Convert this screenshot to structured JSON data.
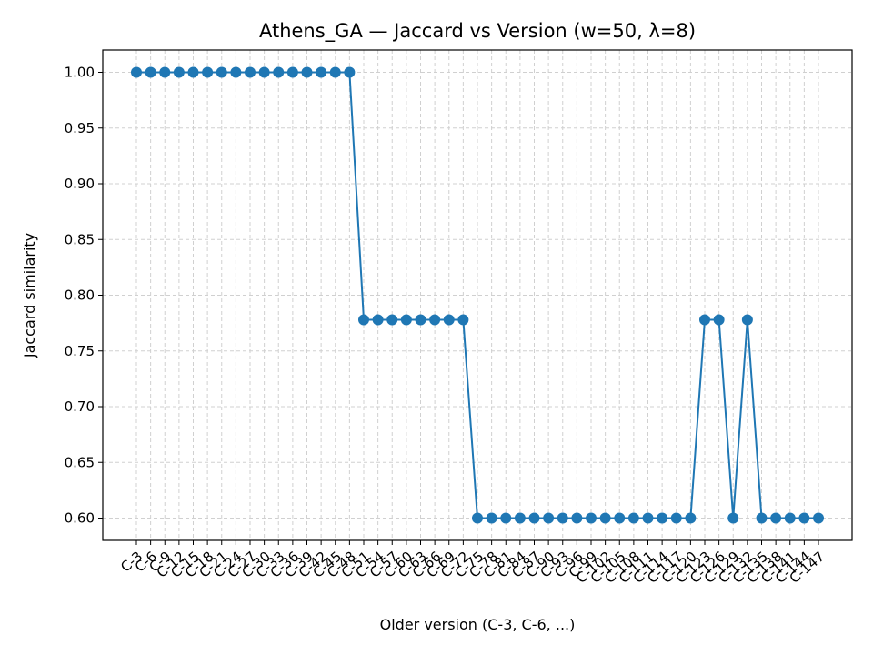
{
  "chart_data": {
    "type": "line",
    "title": "Athens_GA — Jaccard vs Version (w=50, λ=8)",
    "xlabel": "Older version (C-3, C-6, ...)",
    "ylabel": "Jaccard similarity",
    "ylim": [
      0.58,
      1.02
    ],
    "yticks": [
      "0.60",
      "0.65",
      "0.70",
      "0.75",
      "0.80",
      "0.85",
      "0.90",
      "0.95",
      "1.00"
    ],
    "grid": true,
    "categories": [
      "C-3",
      "C-6",
      "C-9",
      "C-12",
      "C-15",
      "C-18",
      "C-21",
      "C-24",
      "C-27",
      "C-30",
      "C-33",
      "C-36",
      "C-39",
      "C-42",
      "C-45",
      "C-48",
      "C-51",
      "C-54",
      "C-57",
      "C-60",
      "C-63",
      "C-66",
      "C-69",
      "C-72",
      "C-75",
      "C-78",
      "C-81",
      "C-84",
      "C-87",
      "C-90",
      "C-93",
      "C-96",
      "C-99",
      "C-102",
      "C-105",
      "C-108",
      "C-111",
      "C-114",
      "C-117",
      "C-120",
      "C-123",
      "C-126",
      "C-129",
      "C-132",
      "C-135",
      "C-138",
      "C-141",
      "C-144",
      "C-147"
    ],
    "series": [
      {
        "color": "#1f77b4",
        "values": [
          1.0,
          1.0,
          1.0,
          1.0,
          1.0,
          1.0,
          1.0,
          1.0,
          1.0,
          1.0,
          1.0,
          1.0,
          1.0,
          1.0,
          1.0,
          1.0,
          0.778,
          0.778,
          0.778,
          0.778,
          0.778,
          0.778,
          0.778,
          0.778,
          0.6,
          0.6,
          0.6,
          0.6,
          0.6,
          0.6,
          0.6,
          0.6,
          0.6,
          0.6,
          0.6,
          0.6,
          0.6,
          0.6,
          0.6,
          0.6,
          0.778,
          0.778,
          0.6,
          0.778,
          0.6,
          0.6,
          0.6,
          0.6,
          0.6
        ]
      }
    ]
  }
}
